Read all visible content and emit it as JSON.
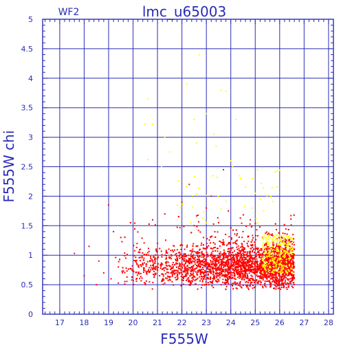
{
  "chart_data": {
    "type": "scatter",
    "title": "lmc_u65003",
    "panel_label": "WF2",
    "xlabel": "F555W",
    "ylabel": "F555W  chi",
    "xlim": [
      16.3,
      28.2
    ],
    "ylim": [
      0,
      5
    ],
    "grid": true,
    "x_ticks": [
      "17",
      "18",
      "19",
      "20",
      "21",
      "22",
      "23",
      "24",
      "25",
      "26",
      "27",
      "28"
    ],
    "y_ticks": [
      "0",
      "0.5",
      "1",
      "1.5",
      "2",
      "2.5",
      "3",
      "3.5",
      "4",
      "4.5",
      "5"
    ],
    "series": [
      {
        "color": "#ff0000",
        "points": [
          [
            17.6,
            1.03
          ],
          [
            18.0,
            0.65
          ],
          [
            18.2,
            1.15
          ],
          [
            18.5,
            0.5
          ],
          [
            18.6,
            0.9
          ],
          [
            18.8,
            0.7
          ],
          [
            19.0,
            1.85
          ],
          [
            19.1,
            0.6
          ],
          [
            19.2,
            1.4
          ],
          [
            19.4,
            0.8
          ],
          [
            19.5,
            1.3
          ],
          [
            19.7,
            0.95
          ],
          [
            19.9,
            1.55
          ],
          [
            20.0,
            0.75
          ],
          [
            20.3,
            1.1
          ],
          [
            20.5,
            0.5
          ],
          [
            20.8,
            1.6
          ],
          [
            21.0,
            1.2
          ],
          [
            21.3,
            1.7
          ],
          [
            21.6,
            0.55
          ],
          [
            22.0,
            1.9
          ],
          [
            22.3,
            2.2
          ],
          [
            22.5,
            1.5
          ],
          [
            22.8,
            0.45
          ],
          [
            23.0,
            1.8
          ],
          [
            23.2,
            2.0
          ],
          [
            23.5,
            1.55
          ],
          [
            23.7,
            2.45
          ],
          [
            23.9,
            1.75
          ],
          [
            24.2,
            1.2
          ],
          [
            24.5,
            1.4
          ],
          [
            24.8,
            1.6
          ],
          [
            25.0,
            0.55
          ],
          [
            25.3,
            1.3
          ],
          [
            25.6,
            1.35
          ],
          [
            25.9,
            1.2
          ],
          [
            26.2,
            0.9
          ],
          [
            26.5,
            0.6
          ]
        ]
      },
      {
        "color": "#ffff00",
        "points": [
          [
            20.5,
            3.22
          ],
          [
            20.6,
            3.65
          ],
          [
            20.6,
            2.62
          ],
          [
            20.8,
            3.22
          ],
          [
            21.3,
            3.0
          ],
          [
            21.5,
            2.75
          ],
          [
            22.2,
            3.9
          ],
          [
            22.5,
            3.3
          ],
          [
            22.6,
            2.9
          ],
          [
            22.7,
            4.4
          ],
          [
            23.0,
            3.4
          ],
          [
            23.3,
            3.05
          ],
          [
            23.4,
            2.85
          ],
          [
            23.6,
            3.8
          ],
          [
            23.8,
            3.78
          ],
          [
            24.0,
            2.6
          ],
          [
            24.2,
            3.3
          ],
          [
            24.4,
            2.3
          ],
          [
            24.6,
            2.15
          ],
          [
            24.9,
            2.3
          ],
          [
            25.0,
            2.05
          ],
          [
            25.1,
            1.55
          ],
          [
            25.2,
            1.95
          ],
          [
            25.4,
            1.3
          ],
          [
            25.6,
            1.05
          ],
          [
            25.8,
            1.2
          ],
          [
            26.0,
            0.95
          ],
          [
            26.2,
            1.0
          ]
        ]
      }
    ]
  }
}
